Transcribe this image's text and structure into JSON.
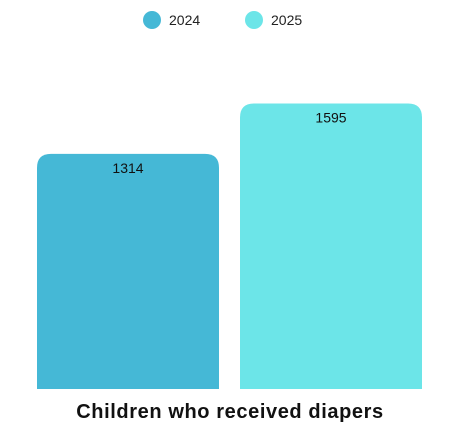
{
  "chart_data": {
    "type": "bar",
    "title": "",
    "xlabel": "Children who received diapers",
    "ylabel": "",
    "categories": [
      "Children who received diapers"
    ],
    "series": [
      {
        "name": "2024",
        "values": [
          1314
        ],
        "color": "#45b8d6"
      },
      {
        "name": "2025",
        "values": [
          1595
        ],
        "color": "#6ce5e8"
      }
    ],
    "ylim": [
      0,
      1950
    ],
    "grid": false,
    "legend_position": "top-center",
    "data_labels": true
  }
}
